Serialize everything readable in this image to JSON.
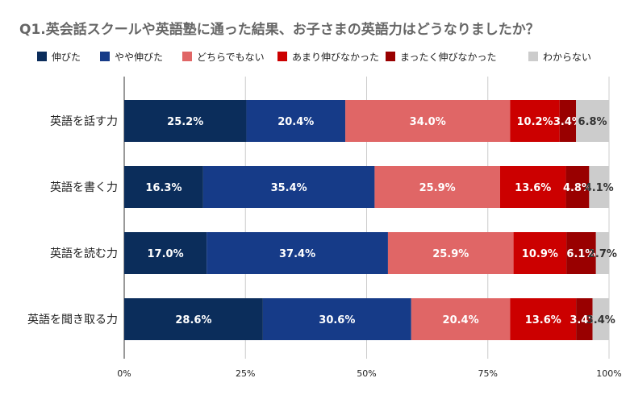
{
  "chart_data": {
    "type": "bar",
    "orientation": "horizontal",
    "stacked": "percent",
    "title": "Q1.英会話スクールや英語塾に通った結果、お子さまの英語力はどうなりましたか？",
    "xlabel": "",
    "ylabel": "",
    "xlim": [
      0,
      100
    ],
    "x_ticks": [
      "0%",
      "25%",
      "50%",
      "75%",
      "100%"
    ],
    "x_tick_values": [
      0,
      25,
      50,
      75,
      100
    ],
    "grid": true,
    "legend_position": "top",
    "categories": [
      "英語を話す力",
      "英語を書く力",
      "英語を読む力",
      "英語を聞き取る力"
    ],
    "series": [
      {
        "name": "伸びた",
        "color": "#0b2d5b",
        "values": [
          25.2,
          16.3,
          17.0,
          28.6
        ],
        "labels": [
          "25.2%",
          "16.3%",
          "17.0%",
          "28.6%"
        ]
      },
      {
        "name": "やや伸びた",
        "color": "#163b88",
        "values": [
          20.4,
          35.4,
          37.4,
          30.6
        ],
        "labels": [
          "20.4%",
          "35.4%",
          "37.4%",
          "30.6%"
        ]
      },
      {
        "name": "どちらでもない",
        "color": "#e06666",
        "values": [
          34.0,
          25.9,
          25.9,
          20.4
        ],
        "labels": [
          "34.0%",
          "25.9%",
          "25.9%",
          "20.4%"
        ]
      },
      {
        "name": "あまり伸びなかった",
        "color": "#cc0000",
        "values": [
          10.2,
          13.6,
          10.9,
          13.6
        ],
        "labels": [
          "10.2%",
          "13.6%",
          "10.9%",
          "13.6%"
        ]
      },
      {
        "name": "まったく伸びなかった",
        "color": "#990000",
        "values": [
          3.4,
          4.8,
          6.1,
          3.4
        ],
        "labels": [
          "3.4%",
          "4.8%",
          "6.1%",
          "3.4%"
        ]
      },
      {
        "name": "わからない",
        "color": "#cccccc",
        "values": [
          6.8,
          4.1,
          2.7,
          3.4
        ],
        "labels": [
          "6.8%",
          "4.1%",
          "2.7%",
          "3.4%"
        ]
      }
    ]
  }
}
